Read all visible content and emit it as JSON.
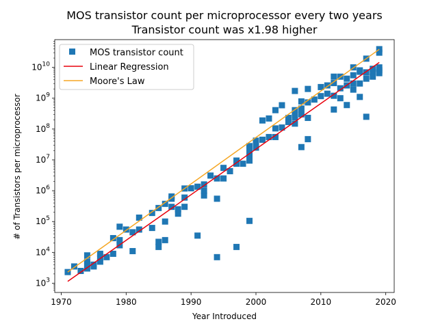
{
  "chart_data": {
    "type": "scatter",
    "title": "MOS transistor count per microprocessor every two years",
    "subtitle": "Transistor count was x1.98 higher",
    "xlabel": "Year Introduced",
    "ylabel": "# of Transistors per microprocessor",
    "xlim": [
      1969,
      2021.3
    ],
    "ylim_log10": [
      2.7,
      10.9
    ],
    "yscale": "log",
    "x_ticks": [
      1970,
      1980,
      1990,
      2000,
      2010,
      2020
    ],
    "x_tick_labels": [
      "1970",
      "1980",
      "1990",
      "2000",
      "2010",
      "2020"
    ],
    "y_ticks_log10": [
      3,
      4,
      5,
      6,
      7,
      8,
      9,
      10
    ],
    "y_tick_labels": [
      {
        "base": "10",
        "exp": "3"
      },
      {
        "base": "10",
        "exp": "4"
      },
      {
        "base": "10",
        "exp": "5"
      },
      {
        "base": "10",
        "exp": "6"
      },
      {
        "base": "10",
        "exp": "7"
      },
      {
        "base": "10",
        "exp": "8"
      },
      {
        "base": "10",
        "exp": "9"
      },
      {
        "base": "10",
        "exp": "10"
      }
    ],
    "grid": false,
    "legend_position": "top-left",
    "series": [
      {
        "name": "MOS transistor count",
        "kind": "scatter",
        "marker": "square",
        "color": "#1f77b4",
        "points": [
          [
            1971,
            2300
          ],
          [
            1972,
            3500
          ],
          [
            1973,
            2500
          ],
          [
            1974,
            3000
          ],
          [
            1974,
            4100
          ],
          [
            1974,
            5000
          ],
          [
            1974,
            8000
          ],
          [
            1975,
            3500
          ],
          [
            1975,
            4000
          ],
          [
            1976,
            5000
          ],
          [
            1976,
            6500
          ],
          [
            1976,
            9000
          ],
          [
            1977,
            7000
          ],
          [
            1978,
            9000
          ],
          [
            1978,
            29000
          ],
          [
            1979,
            17000
          ],
          [
            1979,
            25000
          ],
          [
            1979,
            68000
          ],
          [
            1980,
            55000
          ],
          [
            1981,
            45000
          ],
          [
            1981,
            11000
          ],
          [
            1982,
            55000
          ],
          [
            1982,
            134000
          ],
          [
            1984,
            190000
          ],
          [
            1984,
            62000
          ],
          [
            1985,
            15000
          ],
          [
            1985,
            22000
          ],
          [
            1985,
            275000
          ],
          [
            1986,
            100000
          ],
          [
            1986,
            25000
          ],
          [
            1986,
            375000
          ],
          [
            1987,
            650000
          ],
          [
            1987,
            300000
          ],
          [
            1987,
            550000
          ],
          [
            1988,
            180000
          ],
          [
            1988,
            250000
          ],
          [
            1989,
            1180000
          ],
          [
            1989,
            600000
          ],
          [
            1989,
            300000
          ],
          [
            1990,
            1200000
          ],
          [
            1991,
            1350000
          ],
          [
            1991,
            35000
          ],
          [
            1992,
            1600000
          ],
          [
            1992,
            700000
          ],
          [
            1992,
            1000000
          ],
          [
            1993,
            3100000
          ],
          [
            1994,
            2500000
          ],
          [
            1994,
            550000
          ],
          [
            1994,
            7000
          ],
          [
            1995,
            5500000
          ],
          [
            1995,
            2500000
          ],
          [
            1996,
            4300000
          ],
          [
            1997,
            9500000
          ],
          [
            1997,
            7500000
          ],
          [
            1997,
            15000
          ],
          [
            1998,
            7500000
          ],
          [
            1999,
            9500000
          ],
          [
            1999,
            15000000
          ],
          [
            1999,
            28000000
          ],
          [
            1999,
            22000000
          ],
          [
            1999,
            105000
          ],
          [
            2000,
            42000000
          ],
          [
            2000,
            37000000
          ],
          [
            2000,
            25000000
          ],
          [
            2001,
            45000000
          ],
          [
            2001,
            190000000
          ],
          [
            2002,
            220000000
          ],
          [
            2002,
            55000000
          ],
          [
            2003,
            55000000
          ],
          [
            2003,
            105000000
          ],
          [
            2003,
            410000000
          ],
          [
            2004,
            112000000
          ],
          [
            2004,
            592000000
          ],
          [
            2005,
            230000000
          ],
          [
            2005,
            169000000
          ],
          [
            2006,
            241000000
          ],
          [
            2006,
            291000000
          ],
          [
            2006,
            1720000000
          ],
          [
            2006,
            410000000
          ],
          [
            2006,
            150000000
          ],
          [
            2007,
            789000000
          ],
          [
            2007,
            463000000
          ],
          [
            2007,
            26000000
          ],
          [
            2007,
            300000000
          ],
          [
            2008,
            731000000
          ],
          [
            2008,
            2000000000
          ],
          [
            2008,
            47000000
          ],
          [
            2008,
            230000000
          ],
          [
            2009,
            904000000
          ],
          [
            2010,
            1170000000
          ],
          [
            2010,
            2300000000
          ],
          [
            2011,
            2600000000
          ],
          [
            2011,
            1400000000
          ],
          [
            2012,
            1200000000
          ],
          [
            2012,
            5000000000
          ],
          [
            2012,
            3100000000
          ],
          [
            2012,
            430000000
          ],
          [
            2013,
            1000000000
          ],
          [
            2013,
            5000000000
          ],
          [
            2013,
            2100000000
          ],
          [
            2014,
            2600000000
          ],
          [
            2014,
            4300000000
          ],
          [
            2014,
            600000000
          ],
          [
            2015,
            10000000000
          ],
          [
            2015,
            3000000000
          ],
          [
            2015,
            1900000000
          ],
          [
            2015,
            5560000000
          ],
          [
            2016,
            7200000000
          ],
          [
            2016,
            8000000000
          ],
          [
            2016,
            3000000000
          ],
          [
            2016,
            1100000000
          ],
          [
            2017,
            19200000000
          ],
          [
            2017,
            250000000
          ],
          [
            2017,
            4300000000
          ],
          [
            2017,
            6900000000
          ],
          [
            2018,
            9000000000
          ],
          [
            2018,
            6900000000
          ],
          [
            2018,
            5000000000
          ],
          [
            2019,
            39000000000
          ],
          [
            2019,
            10000000000
          ],
          [
            2019,
            8000000000
          ],
          [
            2019,
            6500000000
          ],
          [
            2019,
            30000000000
          ]
        ]
      },
      {
        "name": "Linear Regression",
        "kind": "line",
        "color": "#e8000b",
        "points": [
          [
            1971,
            1150
          ],
          [
            2019,
            14500000000
          ]
        ]
      },
      {
        "name": "Moore's Law",
        "kind": "line",
        "color": "#f5a623",
        "points": [
          [
            1971,
            2300
          ],
          [
            2019,
            38500000000
          ]
        ]
      }
    ]
  }
}
